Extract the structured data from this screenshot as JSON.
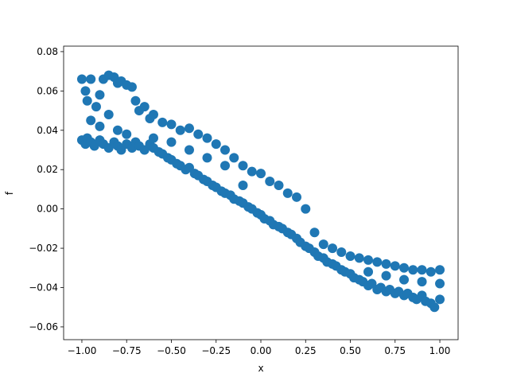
{
  "chart_data": {
    "type": "scatter",
    "xlabel": "x",
    "ylabel": "f",
    "color": "#1f77b4",
    "xlim": [
      -1.102,
      1.102
    ],
    "ylim": [
      -0.0665,
      0.0828
    ],
    "xticks": [
      {
        "value": -1,
        "label": "−1.00"
      },
      {
        "value": -0.75,
        "label": "−0.75"
      },
      {
        "value": -0.5,
        "label": "−0.50"
      },
      {
        "value": -0.25,
        "label": "−0.25"
      },
      {
        "value": 0,
        "label": "0.00"
      },
      {
        "value": 0.25,
        "label": "0.25"
      },
      {
        "value": 0.5,
        "label": "0.50"
      },
      {
        "value": 0.75,
        "label": "0.75"
      },
      {
        "value": 1,
        "label": "1.00"
      }
    ],
    "yticks": [
      {
        "value": -0.06,
        "label": "−0.06"
      },
      {
        "value": -0.04,
        "label": "−0.04"
      },
      {
        "value": -0.02,
        "label": "−0.02"
      },
      {
        "value": 0,
        "label": "0.00"
      },
      {
        "value": 0.02,
        "label": "0.02"
      },
      {
        "value": 0.04,
        "label": "0.04"
      },
      {
        "value": 0.06,
        "label": "0.06"
      },
      {
        "value": 0.08,
        "label": "0.08"
      }
    ],
    "x": [
      -1,
      -0.98,
      -0.97,
      -0.95,
      -0.93,
      -0.9,
      -0.88,
      -0.85,
      -0.82,
      -0.8,
      -0.78,
      -0.75,
      -0.72,
      -0.7,
      -0.68,
      -0.65,
      -0.62,
      -0.6,
      -0.57,
      -0.55,
      -0.52,
      -0.5,
      -0.47,
      -0.45,
      -0.42,
      -0.4,
      -0.37,
      -0.35,
      -0.32,
      -0.3,
      -0.27,
      -0.25,
      -0.22,
      -0.2,
      -0.17,
      -0.15,
      -0.12,
      -0.1,
      -0.07,
      -0.05,
      -0.02,
      0,
      0.02,
      0.05,
      0.07,
      0.1,
      0.12,
      0.15,
      0.17,
      0.2,
      0.22,
      0.25,
      0.27,
      0.3,
      0.32,
      0.35,
      0.37,
      0.4,
      0.42,
      0.45,
      0.47,
      0.5,
      0.52,
      0.55,
      0.57,
      0.6,
      0.62,
      0.65,
      0.67,
      0.7,
      0.72,
      0.75,
      0.77,
      0.8,
      0.82,
      0.85,
      0.87,
      0.9,
      0.92,
      0.95,
      0.97,
      1,
      -1,
      -0.98,
      -0.97,
      -0.95,
      -0.92,
      -0.9,
      -0.88,
      -0.85,
      -0.82,
      -0.8,
      -0.78,
      -0.75,
      -0.72,
      -0.7,
      -0.68,
      -0.65,
      -0.62,
      -0.6,
      -0.55,
      -0.5,
      -0.45,
      -0.4,
      -0.35,
      -0.3,
      -0.25,
      -0.2,
      -0.15,
      -0.1,
      -0.05,
      0,
      0.05,
      0.1,
      0.15,
      0.2,
      0.25,
      0.3,
      0.35,
      0.4,
      0.45,
      0.5,
      0.55,
      0.6,
      0.65,
      0.7,
      0.75,
      0.8,
      0.85,
      0.9,
      0.95,
      1,
      -0.95,
      -0.9,
      -0.85,
      -0.8,
      -0.75,
      -0.6,
      -0.5,
      -0.4,
      -0.3,
      -0.2,
      -0.1,
      0.6,
      0.7,
      0.8,
      0.9,
      1
    ],
    "y": [
      0.035,
      0.033,
      0.036,
      0.034,
      0.032,
      0.035,
      0.033,
      0.031,
      0.034,
      0.032,
      0.03,
      0.033,
      0.031,
      0.034,
      0.032,
      0.03,
      0.033,
      0.031,
      0.029,
      0.028,
      0.026,
      0.025,
      0.023,
      0.022,
      0.02,
      0.021,
      0.018,
      0.017,
      0.015,
      0.014,
      0.012,
      0.011,
      0.009,
      0.008,
      0.007,
      0.005,
      0.004,
      0.003,
      0.001,
      0.0,
      -0.002,
      -0.003,
      -0.005,
      -0.006,
      -0.008,
      -0.009,
      -0.01,
      -0.012,
      -0.013,
      -0.015,
      -0.017,
      -0.019,
      -0.02,
      -0.022,
      -0.024,
      -0.025,
      -0.027,
      -0.028,
      -0.029,
      -0.031,
      -0.032,
      -0.033,
      -0.035,
      -0.036,
      -0.037,
      -0.039,
      -0.038,
      -0.041,
      -0.04,
      -0.042,
      -0.041,
      -0.043,
      -0.042,
      -0.044,
      -0.043,
      -0.045,
      -0.046,
      -0.044,
      -0.047,
      -0.048,
      -0.05,
      -0.046,
      0.066,
      0.06,
      0.055,
      0.066,
      0.052,
      0.058,
      0.066,
      0.068,
      0.067,
      0.064,
      0.065,
      0.063,
      0.062,
      0.055,
      0.05,
      0.052,
      0.046,
      0.048,
      0.044,
      0.043,
      0.04,
      0.041,
      0.038,
      0.036,
      0.033,
      0.03,
      0.026,
      0.022,
      0.019,
      0.018,
      0.014,
      0.012,
      0.008,
      0.006,
      0.0,
      -0.012,
      -0.018,
      -0.02,
      -0.022,
      -0.024,
      -0.025,
      -0.026,
      -0.027,
      -0.028,
      -0.029,
      -0.03,
      -0.031,
      -0.031,
      -0.032,
      -0.031,
      0.045,
      0.042,
      0.048,
      0.04,
      0.038,
      0.036,
      0.034,
      0.03,
      0.026,
      0.022,
      0.012,
      -0.032,
      -0.034,
      -0.036,
      -0.037,
      -0.038
    ]
  }
}
